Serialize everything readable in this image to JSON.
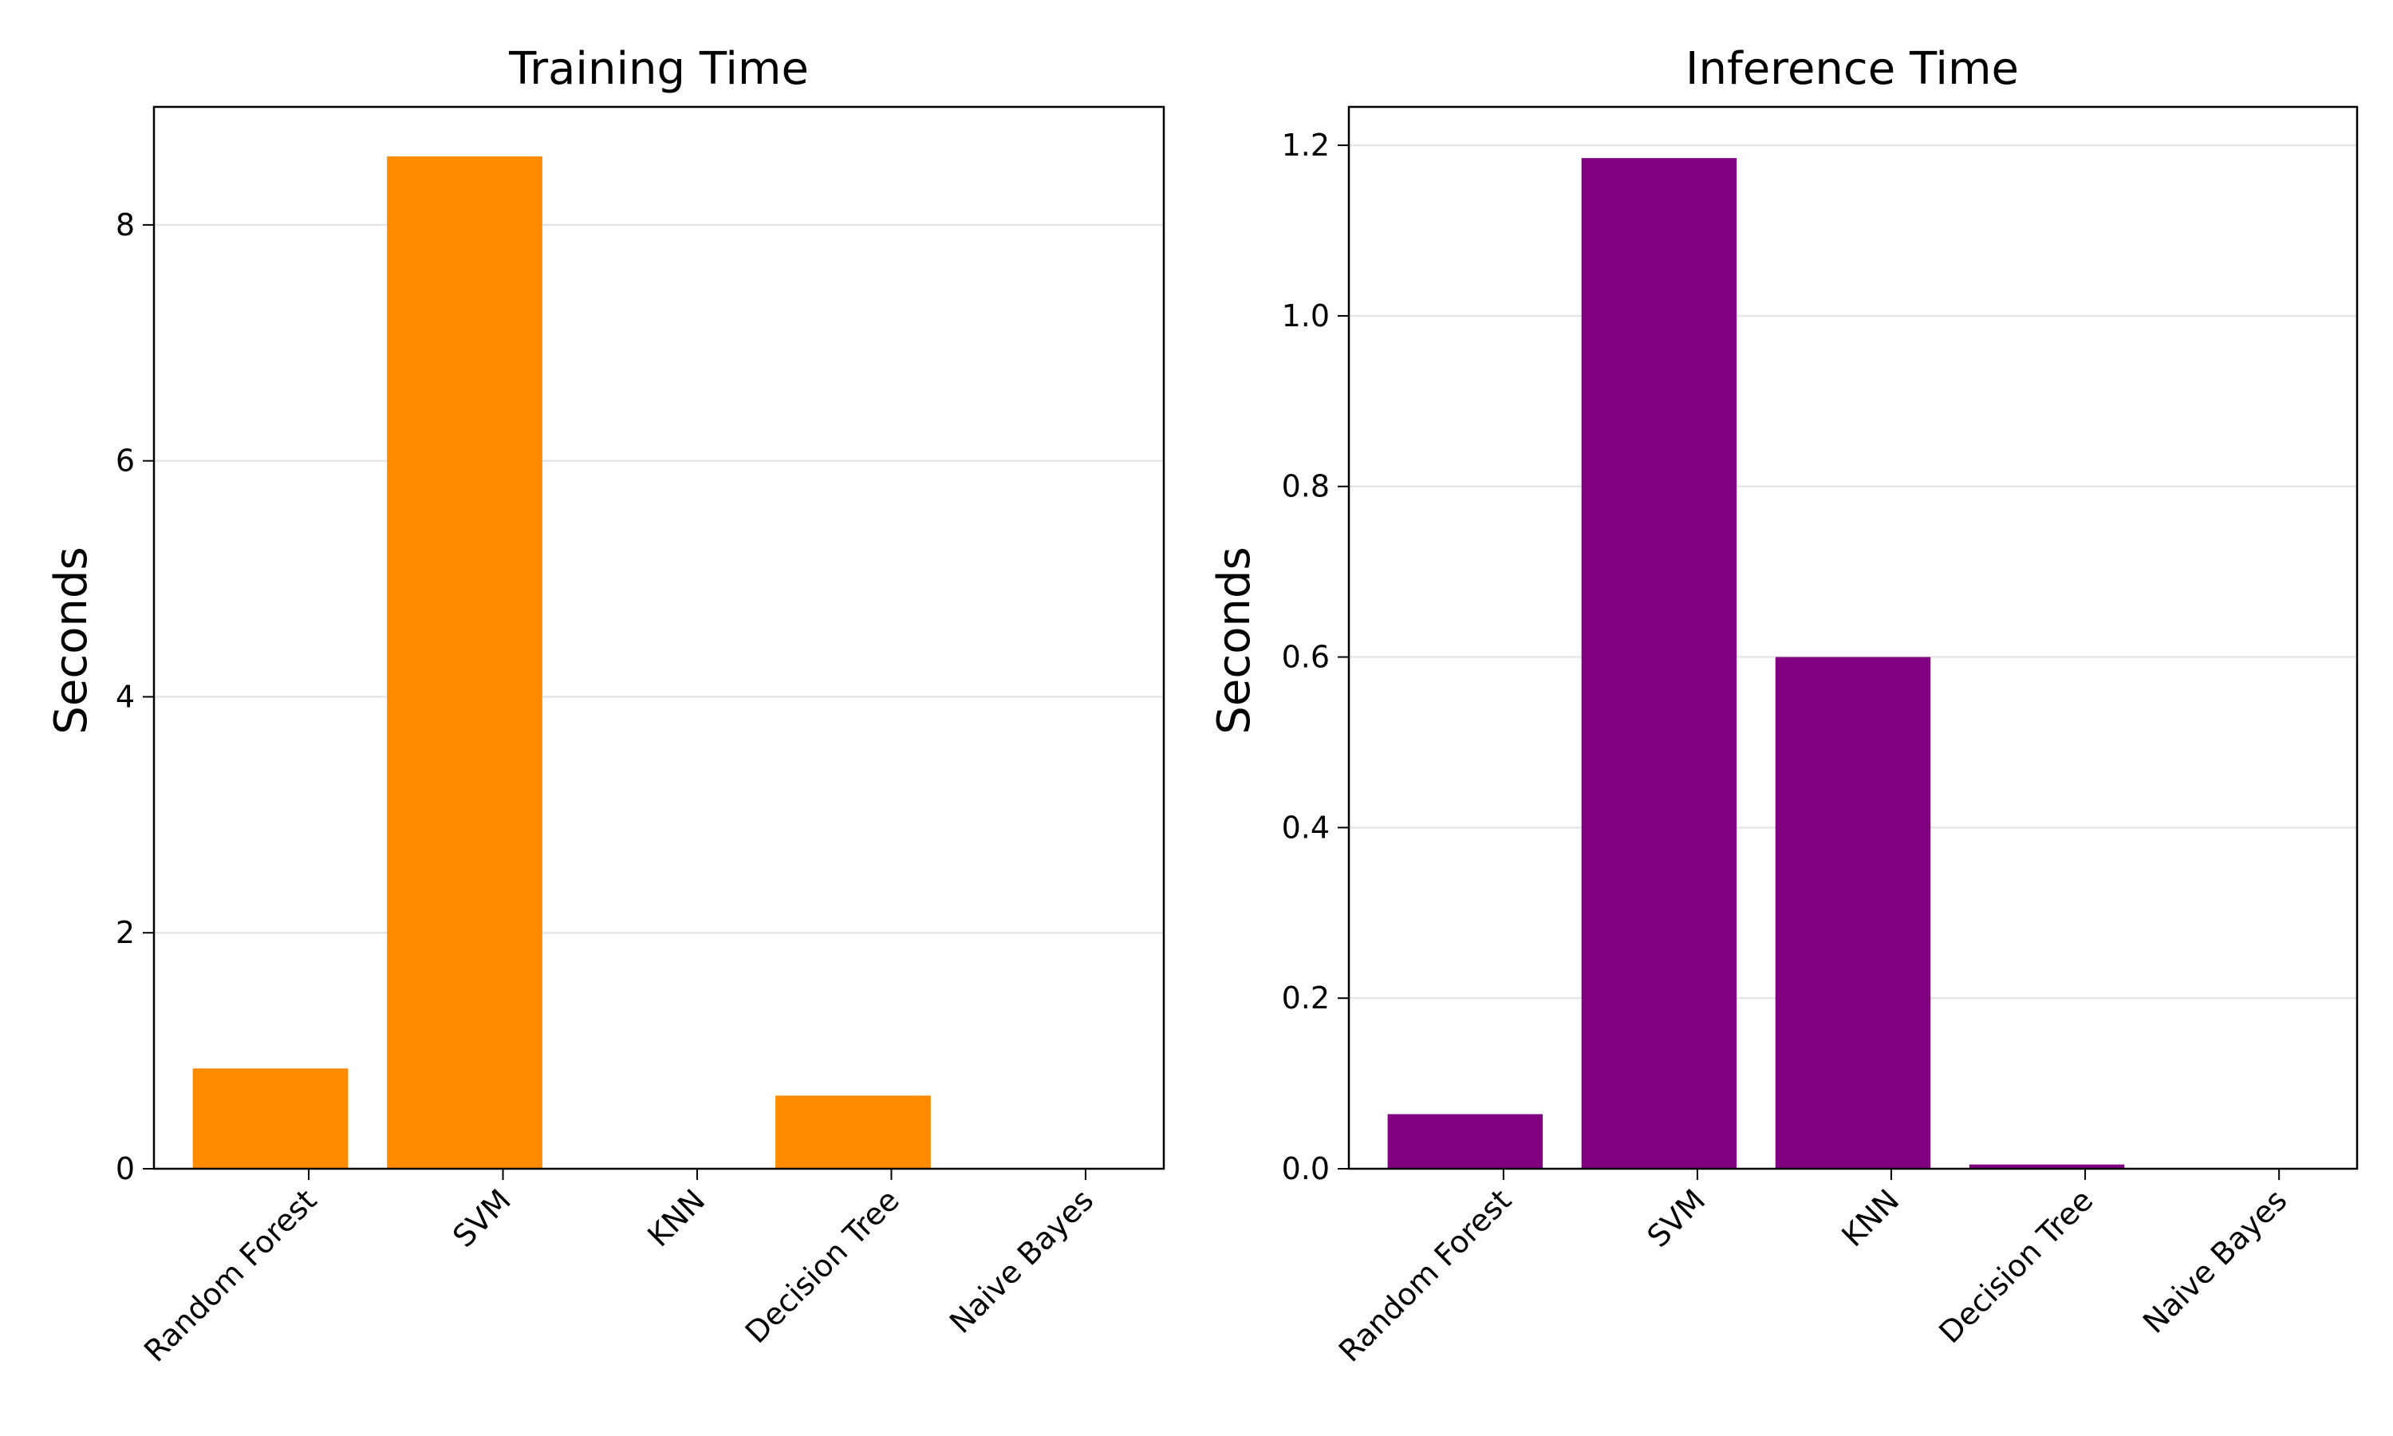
{
  "chart_data": [
    {
      "type": "bar",
      "title": "Training Time",
      "xlabel": "",
      "ylabel": "Seconds",
      "categories": [
        "Random Forest",
        "SVM",
        "KNN",
        "Decision Tree",
        "Naive Bayes"
      ],
      "values": [
        0.85,
        8.58,
        0.0,
        0.62,
        0.0
      ],
      "ylim": [
        0,
        9.0
      ],
      "yticks": [
        0,
        2,
        4,
        6,
        8
      ],
      "ytick_labels": [
        "0",
        "2",
        "4",
        "6",
        "8"
      ],
      "color": "#FF8C00",
      "grid": "y"
    },
    {
      "type": "bar",
      "title": "Inference Time",
      "xlabel": "",
      "ylabel": "Seconds",
      "categories": [
        "Random Forest",
        "SVM",
        "KNN",
        "Decision Tree",
        "Naive Bayes"
      ],
      "values": [
        0.064,
        1.185,
        0.6,
        0.005,
        0.0
      ],
      "ylim": [
        0,
        1.245
      ],
      "yticks": [
        0.0,
        0.2,
        0.4,
        0.6,
        0.8,
        1.0,
        1.2
      ],
      "ytick_labels": [
        "0.0",
        "0.2",
        "0.4",
        "0.6",
        "0.8",
        "1.0",
        "1.2"
      ],
      "color": "#800080",
      "grid": "y"
    }
  ]
}
